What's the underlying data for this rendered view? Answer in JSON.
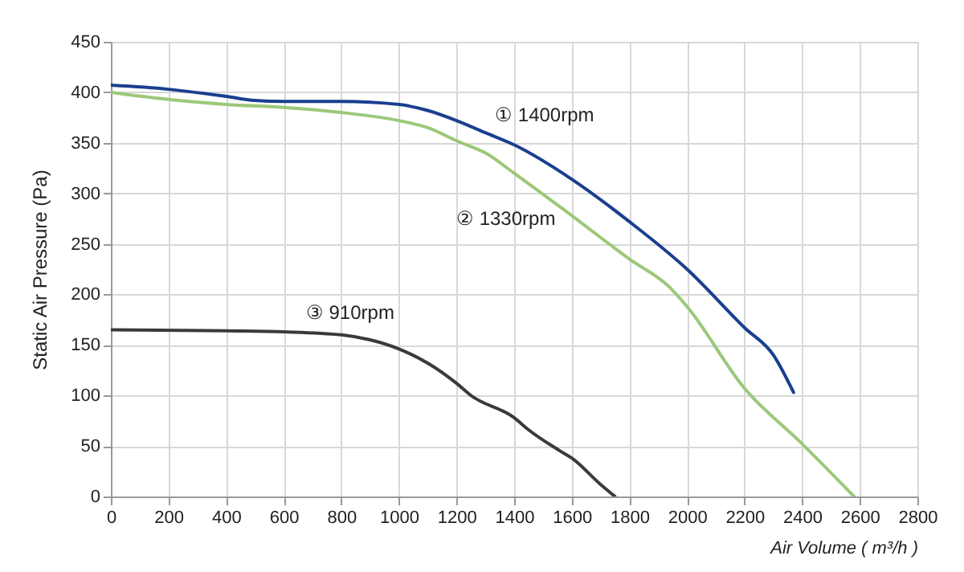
{
  "chart_data": {
    "type": "line",
    "xlabel": "Air Volume ( m³/h )",
    "ylabel": "Static Air Pressure  (Pa)",
    "xlim": [
      0,
      2800
    ],
    "xticks": [
      0,
      200,
      400,
      600,
      800,
      1000,
      1200,
      1400,
      1600,
      1800,
      2000,
      2200,
      2400,
      2600,
      2800
    ],
    "ylim": [
      0,
      450
    ],
    "yticks": [
      0,
      50,
      100,
      150,
      200,
      250,
      300,
      350,
      400,
      450
    ],
    "grid": true,
    "marker": "none",
    "line_style": "solid",
    "series": [
      {
        "name": "① 1400rpm",
        "color": "#1a3f8f",
        "x": [
          0,
          200,
          400,
          500,
          600,
          800,
          1000,
          1100,
          1200,
          1300,
          1400,
          1600,
          1800,
          2000,
          2200,
          2300,
          2370
        ],
        "values": [
          407,
          403,
          396,
          392,
          391,
          391,
          388,
          382,
          372,
          360,
          348,
          314,
          272,
          225,
          167,
          140,
          103
        ]
      },
      {
        "name": "② 1330rpm",
        "color": "#9cc87a",
        "x": [
          0,
          200,
          400,
          600,
          800,
          1000,
          1100,
          1200,
          1300,
          1400,
          1600,
          1800,
          1940,
          2000,
          2200,
          2400,
          2580
        ],
        "values": [
          400,
          393,
          388,
          385,
          380,
          372,
          365,
          352,
          340,
          320,
          278,
          235,
          207,
          188,
          107,
          52,
          0
        ]
      },
      {
        "name": "③ 910rpm",
        "color": "#3a3a3a",
        "x": [
          0,
          400,
          600,
          800,
          900,
          1000,
          1100,
          1200,
          1250,
          1400,
          1450,
          1560,
          1600,
          1700,
          1750
        ],
        "values": [
          165,
          164,
          163,
          160,
          155,
          146,
          132,
          112,
          100,
          78,
          66,
          45,
          38,
          12,
          0
        ]
      }
    ]
  }
}
